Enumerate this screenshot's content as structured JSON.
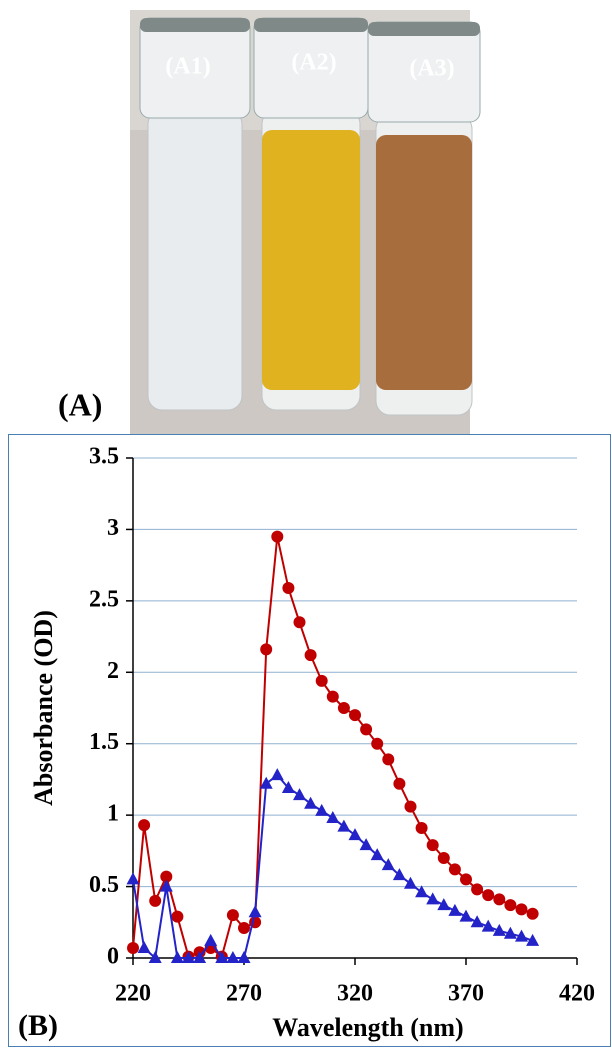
{
  "photo": {
    "labels": [
      "(A1)",
      "(A2)",
      "(A3)"
    ],
    "panel_label": "(A)"
  },
  "chart_data": {
    "type": "line",
    "panel_label": "(B)",
    "x_label": "Wavelength (nm)",
    "y_label": "Absorbance (OD)",
    "x": [
      220,
      225,
      230,
      235,
      240,
      245,
      250,
      255,
      260,
      265,
      270,
      275,
      280,
      285,
      290,
      295,
      300,
      305,
      310,
      315,
      320,
      325,
      330,
      335,
      340,
      345,
      350,
      355,
      360,
      365,
      370,
      375,
      380,
      385,
      390,
      395,
      400
    ],
    "series": [
      {
        "color": "#c00000",
        "marker": "circle",
        "values": [
          0.07,
          0.93,
          0.4,
          0.57,
          0.29,
          0.01,
          0.04,
          0.07,
          0.01,
          0.3,
          0.21,
          0.25,
          2.16,
          2.95,
          2.59,
          2.35,
          2.12,
          1.94,
          1.83,
          1.75,
          1.7,
          1.6,
          1.5,
          1.39,
          1.22,
          1.06,
          0.91,
          0.79,
          0.7,
          0.62,
          0.55,
          0.48,
          0.44,
          0.41,
          0.37,
          0.34,
          0.31
        ]
      },
      {
        "color": "#2323c8",
        "marker": "triangle",
        "values": [
          0.55,
          0.07,
          0,
          0.5,
          0,
          0,
          0,
          0.12,
          0,
          0,
          0,
          0.32,
          1.22,
          1.28,
          1.19,
          1.14,
          1.08,
          1.03,
          0.98,
          0.92,
          0.86,
          0.79,
          0.72,
          0.65,
          0.58,
          0.52,
          0.46,
          0.41,
          0.37,
          0.33,
          0.29,
          0.25,
          0.22,
          0.19,
          0.17,
          0.15,
          0.12
        ]
      }
    ],
    "xlim": [
      220,
      420
    ],
    "xticks": [
      220,
      270,
      320,
      370,
      420
    ],
    "ylim": [
      0,
      3.5
    ],
    "yticks": [
      0,
      0.5,
      1,
      1.5,
      2,
      2.5,
      3,
      3.5
    ],
    "grid": true
  }
}
